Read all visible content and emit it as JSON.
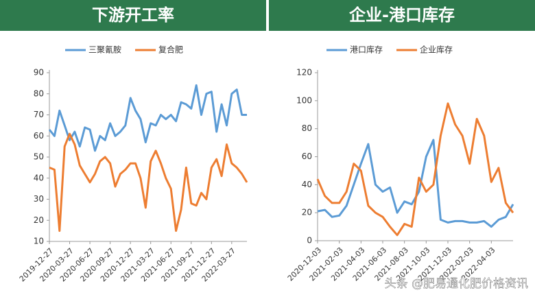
{
  "chart_data": [
    {
      "type": "line",
      "title": "下游开工率",
      "categories": [
        "2019-12-27",
        null,
        null,
        null,
        "2020-03-27",
        null,
        null,
        null,
        "2020-06-27",
        null,
        null,
        null,
        "2020-09-27",
        null,
        null,
        null,
        "2020-12-27",
        null,
        null,
        null,
        "2021-03-27",
        null,
        null,
        null,
        "2021-06-27",
        null,
        null,
        null,
        "2021-09-27",
        null,
        null,
        null,
        "2021-12-27",
        null,
        null,
        null,
        "2022-03-27",
        null,
        null,
        null
      ],
      "series": [
        {
          "name": "三聚氰胺",
          "color": "#5b9bd5",
          "values": [
            63,
            60,
            72,
            65,
            58,
            62,
            55,
            64,
            63,
            53,
            60,
            58,
            66,
            60,
            62,
            65,
            78,
            72,
            68,
            57,
            66,
            65,
            70,
            68,
            70,
            67,
            76,
            75,
            73,
            84,
            70,
            80,
            81,
            62,
            75,
            65,
            80,
            82,
            70,
            70
          ]
        },
        {
          "name": "复合肥",
          "color": "#ed7d31",
          "values": [
            45,
            44,
            15,
            55,
            61,
            56,
            46,
            42,
            38,
            42,
            48,
            50,
            47,
            36,
            42,
            44,
            47,
            47,
            40,
            26,
            48,
            53,
            47,
            40,
            35,
            15,
            25,
            45,
            28,
            27,
            33,
            30,
            45,
            49,
            41,
            56,
            47,
            45,
            42,
            38
          ]
        }
      ],
      "ylim": [
        10,
        90
      ],
      "yticks": [
        10,
        20,
        30,
        40,
        50,
        60,
        70,
        80,
        90
      ]
    },
    {
      "type": "line",
      "title": "企业-港口库存",
      "categories": [
        "2020-12-03",
        null,
        null,
        "2021-02-03",
        null,
        null,
        "2021-04-03",
        null,
        null,
        "2021-06-03",
        null,
        null,
        "2021-08-03",
        null,
        null,
        "2021-10-03",
        null,
        null,
        "2021-12-03",
        null,
        null,
        "2022-02-03",
        null,
        null,
        "2022-04-03",
        null,
        null,
        null
      ],
      "series": [
        {
          "name": "港口库存",
          "color": "#5b9bd5",
          "values": [
            21,
            22,
            17,
            18,
            25,
            40,
            55,
            69,
            40,
            35,
            38,
            20,
            28,
            26,
            35,
            60,
            72,
            15,
            13,
            14,
            14,
            13,
            13,
            14,
            10,
            15,
            17,
            26
          ]
        },
        {
          "name": "企业库存",
          "color": "#ed7d31",
          "values": [
            44,
            32,
            27,
            27,
            35,
            55,
            50,
            25,
            20,
            17,
            10,
            4,
            12,
            10,
            45,
            35,
            40,
            75,
            98,
            83,
            75,
            55,
            87,
            75,
            42,
            52,
            27,
            20
          ]
        }
      ],
      "ylim": [
        0,
        120
      ],
      "yticks": [
        0,
        20,
        40,
        60,
        80,
        100,
        120
      ]
    }
  ],
  "watermark": "头条 @肥易通化肥价格资讯"
}
